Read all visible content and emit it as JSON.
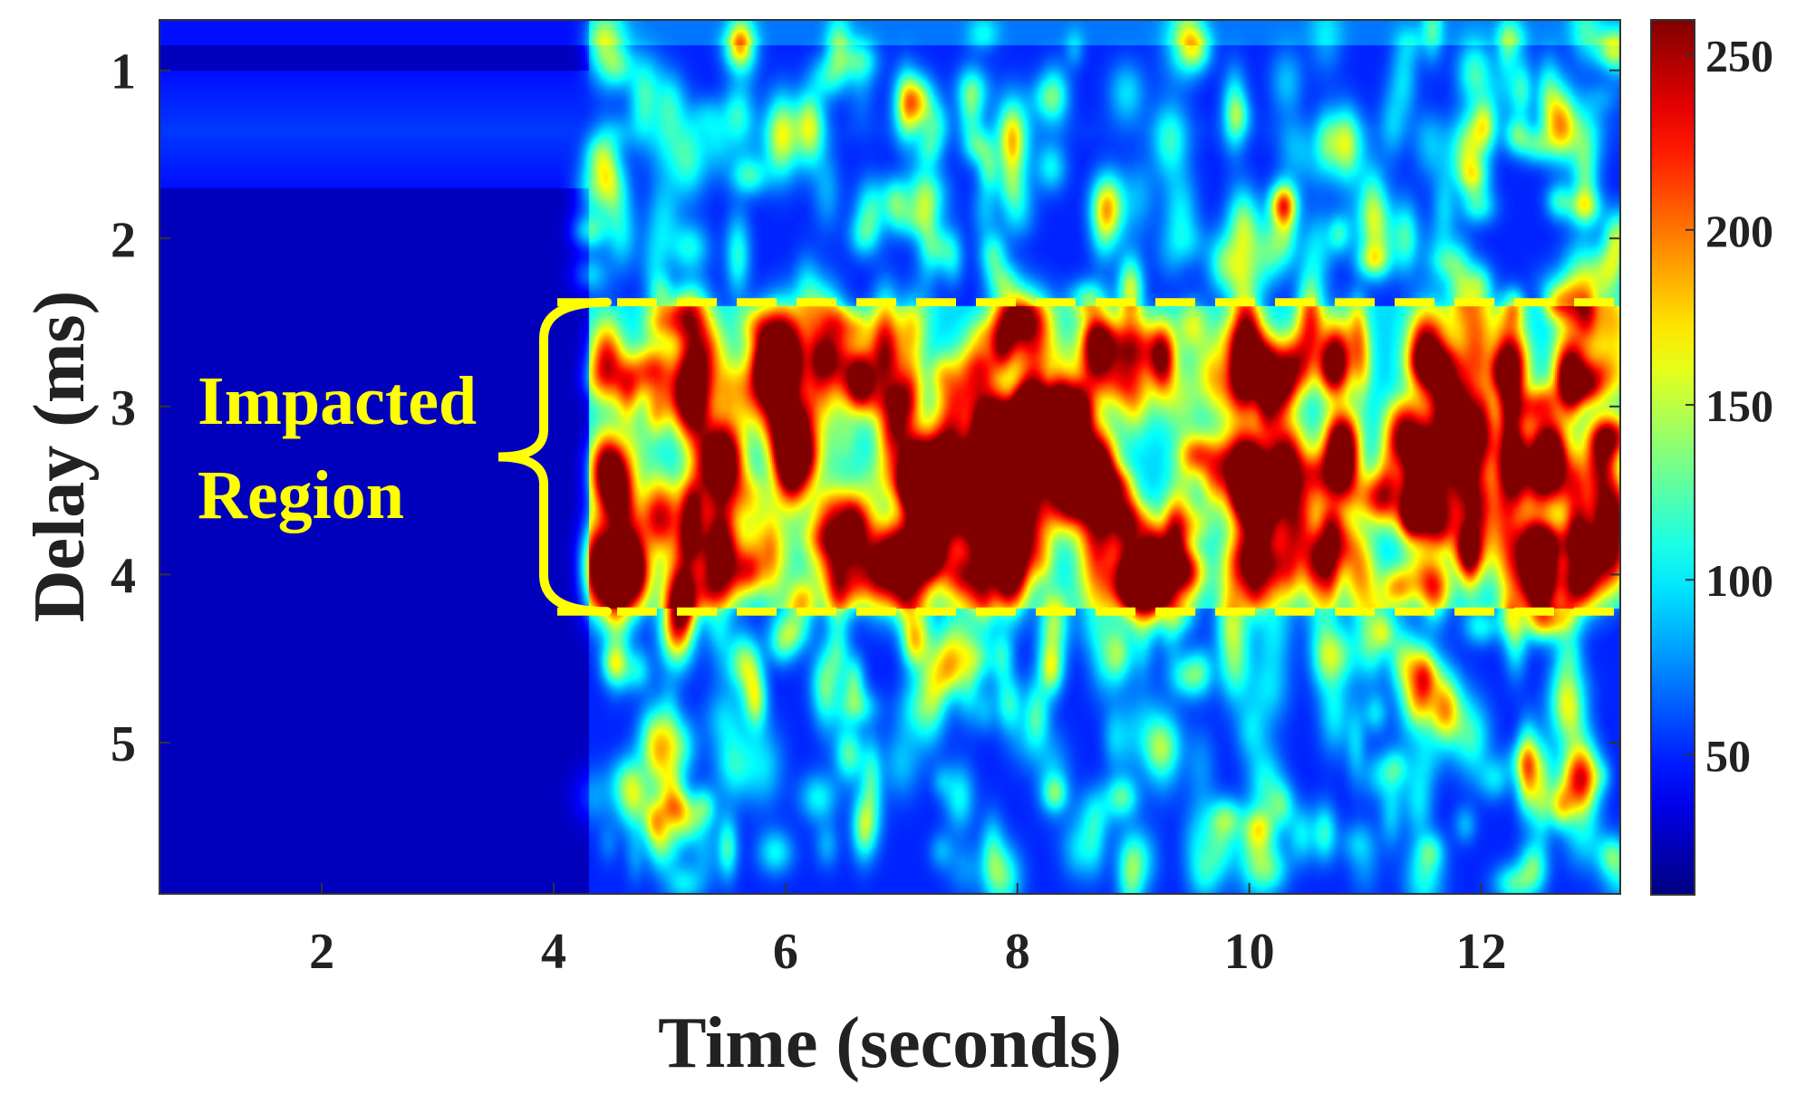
{
  "chart_data": {
    "type": "heatmap",
    "title": "",
    "xlabel": "Time (seconds)",
    "ylabel": "Delay (ms)",
    "xlim": [
      0.6,
      13.2
    ],
    "ylim": [
      5.9,
      0.7
    ],
    "y_reversed": true,
    "x_ticks": [
      2,
      4,
      6,
      8,
      10,
      12
    ],
    "x_tick_labels": [
      "2",
      "4",
      "6",
      "8",
      "10",
      "12"
    ],
    "y_ticks": [
      1,
      2,
      3,
      4,
      5
    ],
    "y_tick_labels": [
      "1",
      "2",
      "3",
      "4",
      "5"
    ],
    "colorbar": {
      "colormap": "jet",
      "range": [
        10,
        260
      ],
      "ticks": [
        50,
        100,
        150,
        200,
        250
      ],
      "tick_labels": [
        "50",
        "100",
        "150",
        "200",
        "250"
      ]
    },
    "background_level": {
      "before_4_3s": 25,
      "after_4_3s": 60,
      "top_band_delay_1_to_1_7_ms": 55
    },
    "hotspots": [
      {
        "t": 4.45,
        "d": 2.72,
        "v": 230
      },
      {
        "t": 4.45,
        "d": 3.38,
        "v": 255
      },
      {
        "t": 4.45,
        "d": 3.95,
        "v": 200
      },
      {
        "t": 5.15,
        "d": 2.92,
        "v": 175
      },
      {
        "t": 5.5,
        "d": 3.25,
        "v": 185
      },
      {
        "t": 6.0,
        "d": 2.75,
        "v": 215
      },
      {
        "t": 6.05,
        "d": 3.38,
        "v": 240
      },
      {
        "t": 7.15,
        "d": 3.45,
        "v": 235
      },
      {
        "t": 7.65,
        "d": 3.42,
        "v": 250
      },
      {
        "t": 7.9,
        "d": 3.32,
        "v": 250
      },
      {
        "t": 8.15,
        "d": 3.25,
        "v": 200
      },
      {
        "t": 7.65,
        "d": 4.05,
        "v": 205
      },
      {
        "t": 7.9,
        "d": 4.0,
        "v": 195
      },
      {
        "t": 8.7,
        "d": 2.68,
        "v": 225
      },
      {
        "t": 8.7,
        "d": 3.35,
        "v": 240
      },
      {
        "t": 8.5,
        "d": 3.28,
        "v": 230
      },
      {
        "t": 9.95,
        "d": 2.8,
        "v": 250
      },
      {
        "t": 10.0,
        "d": 3.45,
        "v": 235
      },
      {
        "t": 10.3,
        "d": 3.35,
        "v": 230
      },
      {
        "t": 10.75,
        "d": 2.7,
        "v": 240
      },
      {
        "t": 10.8,
        "d": 3.3,
        "v": 255
      },
      {
        "t": 10.95,
        "d": 4.0,
        "v": 185
      },
      {
        "t": 11.5,
        "d": 2.68,
        "v": 225
      },
      {
        "t": 11.5,
        "d": 3.3,
        "v": 250
      },
      {
        "t": 11.85,
        "d": 3.3,
        "v": 200
      },
      {
        "t": 12.25,
        "d": 2.75,
        "v": 255
      },
      {
        "t": 12.3,
        "d": 3.35,
        "v": 260
      },
      {
        "t": 12.55,
        "d": 3.35,
        "v": 260
      },
      {
        "t": 12.75,
        "d": 2.75,
        "v": 205
      },
      {
        "t": 12.5,
        "d": 4.05,
        "v": 235
      }
    ]
  },
  "annotation": {
    "line1": "Impacted",
    "line2": "Region",
    "color": "#ffff00",
    "region_delay_ms": [
      2.38,
      4.22
    ],
    "region_time_start_s": 4.3
  }
}
